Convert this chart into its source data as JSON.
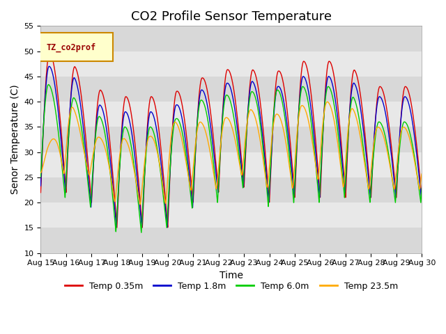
{
  "title": "CO2 Profile Sensor Temperature",
  "xlabel": "Time",
  "ylabel": "Senor Temperature (C)",
  "ylim": [
    10,
    55
  ],
  "xlim_days": [
    0,
    15
  ],
  "x_tick_labels": [
    "Aug 15",
    "Aug 16",
    "Aug 17",
    "Aug 18",
    "Aug 19",
    "Aug 20",
    "Aug 21",
    "Aug 22",
    "Aug 23",
    "Aug 24",
    "Aug 25",
    "Aug 26",
    "Aug 27",
    "Aug 28",
    "Aug 29",
    "Aug 30"
  ],
  "legend_label": "TZ_co2prof",
  "series": [
    {
      "label": "Temp 0.35m",
      "color": "#dd0000"
    },
    {
      "label": "Temp 1.8m",
      "color": "#0000cc"
    },
    {
      "label": "Temp 6.0m",
      "color": "#00cc00"
    },
    {
      "label": "Temp 23.5m",
      "color": "#ffaa00"
    }
  ],
  "plot_bg_color": "#e8e8e8",
  "fig_bg_color": "#ffffff",
  "grid_color": "#ffffff",
  "band_colors": [
    "#d8d8d8",
    "#e8e8e8"
  ],
  "title_fontsize": 13,
  "axis_label_fontsize": 10,
  "tick_fontsize": 8
}
